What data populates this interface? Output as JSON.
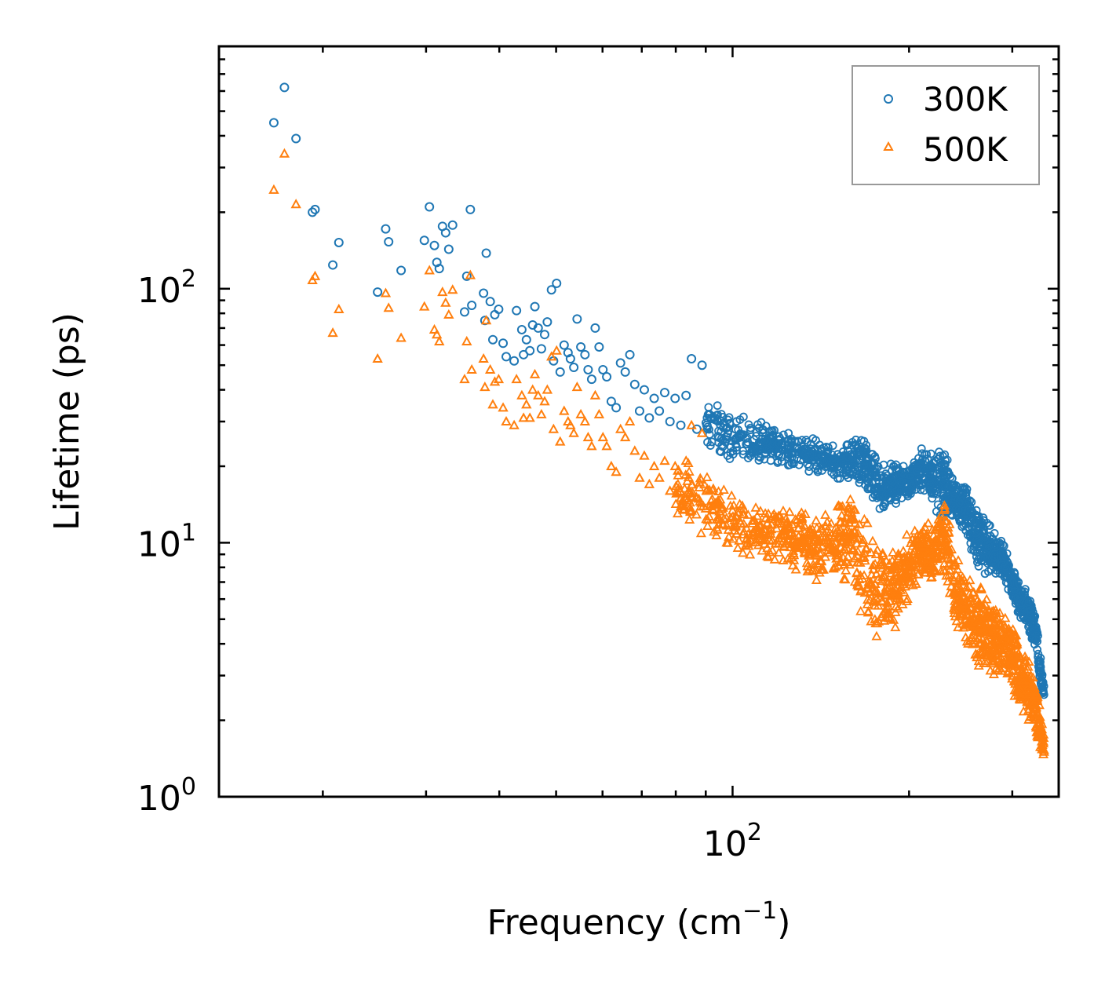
{
  "chart_data": {
    "type": "scatter",
    "title": "",
    "xlabel": "Frequency (cm",
    "xlabel_sup": "−1",
    "xlabel_close": ")",
    "ylabel": "Lifetime (ps)",
    "xscale": "log",
    "yscale": "log",
    "xlim": [
      13.3,
      360
    ],
    "ylim": [
      1,
      900
    ],
    "x_tick_labels": [
      {
        "base": "10",
        "exp": "2",
        "value": 100
      }
    ],
    "y_tick_labels": [
      {
        "base": "10",
        "exp": "0",
        "value": 1
      },
      {
        "base": "10",
        "exp": "1",
        "value": 10
      },
      {
        "base": "10",
        "exp": "2",
        "value": 100
      }
    ],
    "legend_position": "top-right",
    "series": [
      {
        "name": "300K",
        "marker": "circle",
        "color": "#1f77b4",
        "x": [
          16.5,
          17.2,
          18.0,
          19.2,
          19.4,
          20.8,
          21.3,
          24.8,
          25.6,
          25.9,
          27.2,
          29.8,
          30.4,
          31.0,
          31.3,
          31.6,
          32.0,
          32.4,
          32.8,
          33.3,
          34.9,
          35.2,
          35.7,
          35.9,
          37.6,
          37.8,
          38.0,
          38.6,
          39.0,
          39.3,
          39.9,
          40.6,
          41.1,
          42.4,
          42.8,
          43.7,
          44.0,
          44.5,
          45.1,
          45.6,
          46.0,
          46.6,
          47.2,
          47.8,
          48.3,
          49.1,
          49.5,
          50.1,
          50.8,
          51.6,
          52.4,
          52.9,
          53.6,
          54.3,
          55.1,
          56.0,
          56.7,
          57.5,
          58.3,
          59.2,
          60.1,
          61.0,
          62.1,
          63.3,
          64.4,
          65.6,
          66.8,
          68.1,
          69.4,
          70.7,
          72.1,
          73.5,
          75.0,
          76.6,
          78.2,
          79.8,
          81.6,
          83.3,
          85.1,
          86.9,
          88.7,
          90.4
        ],
        "y": [
          450,
          620,
          390,
          200,
          205,
          124,
          152,
          97,
          172,
          153,
          118,
          155,
          210,
          148,
          127,
          120,
          176,
          166,
          143,
          178,
          81,
          112,
          205,
          86,
          96,
          75,
          138,
          89,
          63,
          79,
          83,
          61,
          54,
          52,
          82,
          69,
          55,
          63,
          57,
          72,
          85,
          70,
          58,
          66,
          74,
          99,
          52,
          105,
          47,
          60,
          56,
          53,
          49,
          76,
          59,
          55,
          48,
          44,
          70,
          59,
          48,
          45,
          36,
          34,
          51,
          47,
          55,
          42,
          33,
          40,
          31,
          37,
          33,
          39,
          30,
          37,
          29,
          38,
          53,
          28,
          50,
          29
        ]
      },
      {
        "name": "500K",
        "marker": "triangle",
        "color": "#ff7f0e",
        "x": [
          16.5,
          17.2,
          18.0,
          19.2,
          19.4,
          20.8,
          21.3,
          24.8,
          25.6,
          25.9,
          27.2,
          29.8,
          30.4,
          31.0,
          31.3,
          31.6,
          32.0,
          32.4,
          32.8,
          33.3,
          34.9,
          35.2,
          35.7,
          35.9,
          37.6,
          37.8,
          38.0,
          38.6,
          39.0,
          39.3,
          39.9,
          40.6,
          41.1,
          42.4,
          42.8,
          43.7,
          44.0,
          44.5,
          45.1,
          45.6,
          46.0,
          46.6,
          47.2,
          47.8,
          48.3,
          49.1,
          49.5,
          50.1,
          50.8,
          51.6,
          52.4,
          52.9,
          53.6,
          54.3,
          55.1,
          56.0,
          56.7,
          57.5,
          58.3,
          59.2,
          60.1,
          61.0,
          62.1,
          63.3,
          64.4,
          65.6,
          66.8,
          68.1,
          69.4,
          70.7,
          72.1,
          73.5,
          75.0,
          76.6,
          78.2,
          79.8,
          81.6,
          83.3,
          85.1,
          86.9,
          88.7,
          90.4
        ],
        "y": [
          245,
          340,
          215,
          108,
          112,
          67,
          83,
          53,
          96,
          84,
          64,
          85,
          118,
          69,
          66,
          62,
          97,
          88,
          79,
          99,
          44,
          62,
          113,
          48,
          53,
          41,
          75,
          48,
          35,
          43,
          44,
          34,
          30,
          29,
          44,
          38,
          31,
          35,
          31,
          40,
          46,
          38,
          32,
          36,
          40,
          54,
          28,
          57,
          25,
          33,
          30,
          29,
          27,
          41,
          32,
          30,
          26,
          24,
          38,
          32,
          26,
          24,
          20,
          19,
          28,
          26,
          30,
          23,
          18,
          22,
          17,
          20,
          18,
          21,
          16,
          20,
          15,
          21,
          29,
          15,
          27,
          16
        ]
      }
    ],
    "bands": [
      {
        "name": "300K",
        "color": "#1f77b4",
        "x": [
          90,
          100,
          110,
          120,
          130,
          140,
          150,
          160,
          170,
          180,
          190,
          200,
          210,
          220,
          230,
          240,
          250,
          260,
          270,
          280,
          290,
          300,
          310,
          320,
          330,
          340
        ],
        "y_low": [
          22,
          21,
          20,
          19.5,
          19,
          18,
          17.5,
          17.5,
          15,
          13,
          14,
          15,
          16,
          14,
          11,
          12,
          11,
          8,
          7,
          7.5,
          7,
          6,
          5,
          4.5,
          3.5,
          2.1
        ],
        "y_high": [
          38,
          33,
          31,
          29,
          27,
          26,
          24,
          26,
          27,
          21,
          21,
          20,
          24,
          23,
          25,
          17,
          17,
          14,
          13,
          11,
          10,
          8,
          7,
          6.5,
          5,
          2.8
        ]
      },
      {
        "name": "500K",
        "color": "#ff7f0e",
        "x": [
          80,
          90,
          100,
          110,
          120,
          130,
          140,
          150,
          160,
          170,
          180,
          190,
          200,
          210,
          220,
          230,
          240,
          250,
          260,
          270,
          280,
          290,
          300,
          310,
          320,
          330,
          340
        ],
        "y_low": [
          12,
          10,
          9,
          8.5,
          8,
          7.5,
          7,
          7,
          7,
          3.5,
          4,
          4.5,
          6,
          7,
          7,
          7,
          4.5,
          4,
          3,
          3,
          3,
          2.8,
          2.5,
          2.2,
          1.9,
          1.7,
          1.3
        ],
        "y_high": [
          22,
          20,
          17,
          15,
          14,
          13.5,
          13,
          14,
          16,
          13,
          10,
          10,
          11,
          13,
          12,
          16,
          9,
          8,
          7.5,
          6.5,
          6,
          5.5,
          4.8,
          4,
          3.5,
          2.7,
          1.8
        ]
      }
    ]
  }
}
